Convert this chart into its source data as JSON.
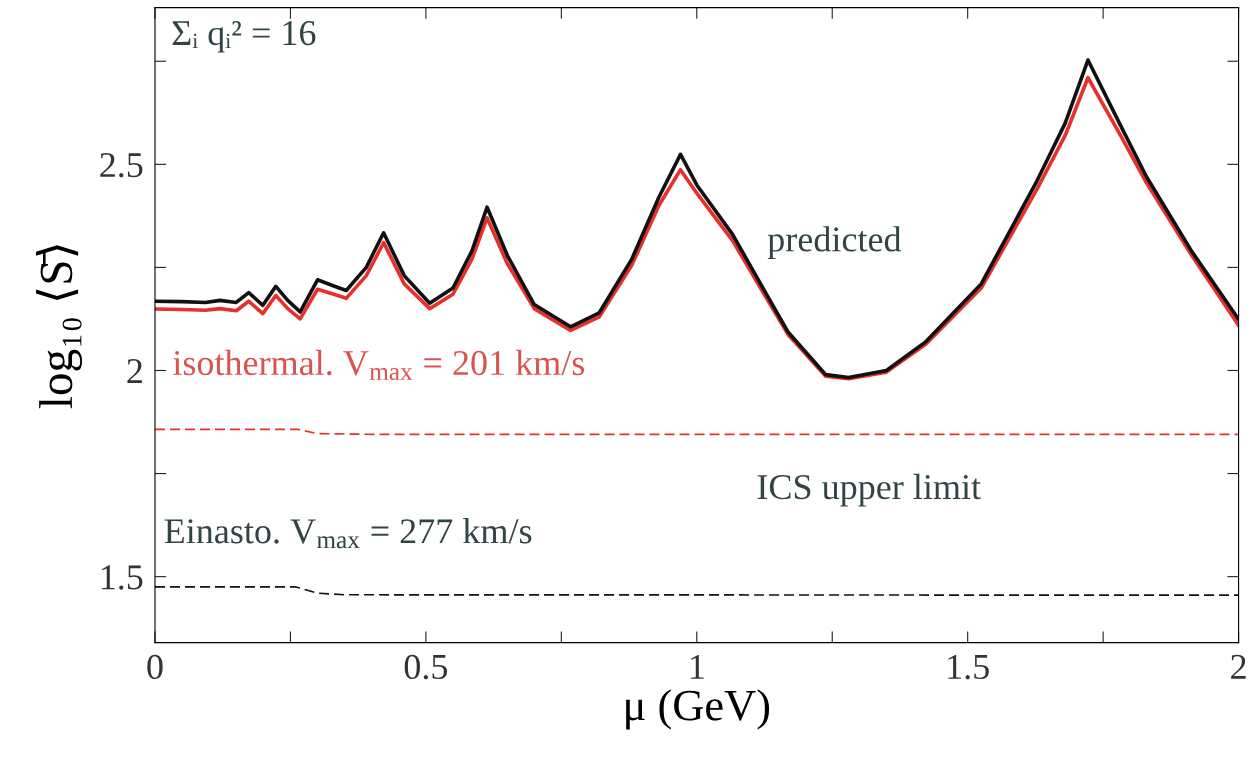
{
  "chart_data": {
    "type": "line",
    "xlabel": "μ (GeV)",
    "ylabel": "log₁₀ ⟨S̄⟩",
    "xlim": [
      0,
      2
    ],
    "xticks": [
      0,
      {
        "value": 0.25,
        "label": null
      },
      0.5,
      {
        "value": 0.75,
        "label": null
      },
      1,
      {
        "value": 1.25,
        "label": null
      },
      1.5,
      {
        "value": 1.75,
        "label": null
      },
      2
    ],
    "ylim": [
      1.34,
      2.88
    ],
    "yticks": [
      1.5,
      {
        "value": 1.75,
        "label": null
      },
      2,
      {
        "value": 2.25,
        "label": null
      },
      2.5,
      {
        "value": 2.75,
        "label": null
      }
    ],
    "grid": false,
    "marker": "none",
    "series": [
      {
        "color": "#e8302a",
        "line_style": "solid",
        "x": [
          0,
          0.05,
          0.093,
          0.12,
          0.15,
          0.173,
          0.199,
          0.223,
          0.245,
          0.268,
          0.3,
          0.33,
          0.353,
          0.39,
          0.422,
          0.46,
          0.507,
          0.55,
          0.585,
          0.613,
          0.65,
          0.7,
          0.767,
          0.82,
          0.88,
          0.93,
          0.97,
          1.0,
          1.066,
          1.168,
          1.238,
          1.28,
          1.35,
          1.423,
          1.525,
          1.628,
          1.68,
          1.722,
          1.78,
          1.83,
          1.913,
          2.0
        ],
        "values": [
          2.149,
          2.148,
          2.146,
          2.15,
          2.145,
          2.168,
          2.138,
          2.182,
          2.15,
          2.125,
          2.197,
          2.185,
          2.175,
          2.23,
          2.31,
          2.21,
          2.15,
          2.185,
          2.27,
          2.37,
          2.26,
          2.15,
          2.097,
          2.13,
          2.255,
          2.4,
          2.487,
          2.43,
          2.315,
          2.088,
          1.986,
          1.98,
          1.996,
          2.064,
          2.2,
          2.44,
          2.57,
          2.71,
          2.575,
          2.455,
          2.28,
          2.11
        ]
      },
      {
        "color": "#111111",
        "line_style": "solid",
        "x": [
          0,
          0.05,
          0.093,
          0.12,
          0.15,
          0.173,
          0.199,
          0.223,
          0.245,
          0.268,
          0.3,
          0.33,
          0.353,
          0.39,
          0.422,
          0.46,
          0.507,
          0.55,
          0.585,
          0.613,
          0.65,
          0.7,
          0.767,
          0.82,
          0.88,
          0.93,
          0.97,
          1.0,
          1.066,
          1.168,
          1.238,
          1.28,
          1.35,
          1.423,
          1.525,
          1.628,
          1.68,
          1.722,
          1.78,
          1.83,
          1.913,
          2.0
        ],
        "values": [
          2.168,
          2.167,
          2.165,
          2.17,
          2.165,
          2.189,
          2.158,
          2.204,
          2.17,
          2.142,
          2.22,
          2.205,
          2.194,
          2.25,
          2.334,
          2.23,
          2.163,
          2.2,
          2.29,
          2.396,
          2.28,
          2.16,
          2.106,
          2.14,
          2.27,
          2.42,
          2.524,
          2.45,
          2.33,
          2.094,
          1.99,
          1.983,
          2.0,
          2.07,
          2.21,
          2.46,
          2.6,
          2.753,
          2.6,
          2.47,
          2.29,
          2.124
        ]
      },
      {
        "color": "#e8302a",
        "line_style": "dashed",
        "x": [
          0,
          0.264,
          0.3,
          0.4,
          2.0
        ],
        "values": [
          1.857,
          1.857,
          1.847,
          1.845,
          1.845
        ]
      },
      {
        "color": "#111111",
        "line_style": "dashed",
        "x": [
          0,
          0.26,
          0.3,
          0.35,
          2.0
        ],
        "values": [
          1.475,
          1.475,
          1.46,
          1.456,
          1.455
        ]
      }
    ],
    "annotations": [
      "Σᵢ qᵢ² = 16",
      "predicted",
      "isothermal. V$_{max}$ = 201 km/s",
      "ICS upper limit",
      "Einasto. V$_{max}$ = 277 km/s"
    ]
  }
}
